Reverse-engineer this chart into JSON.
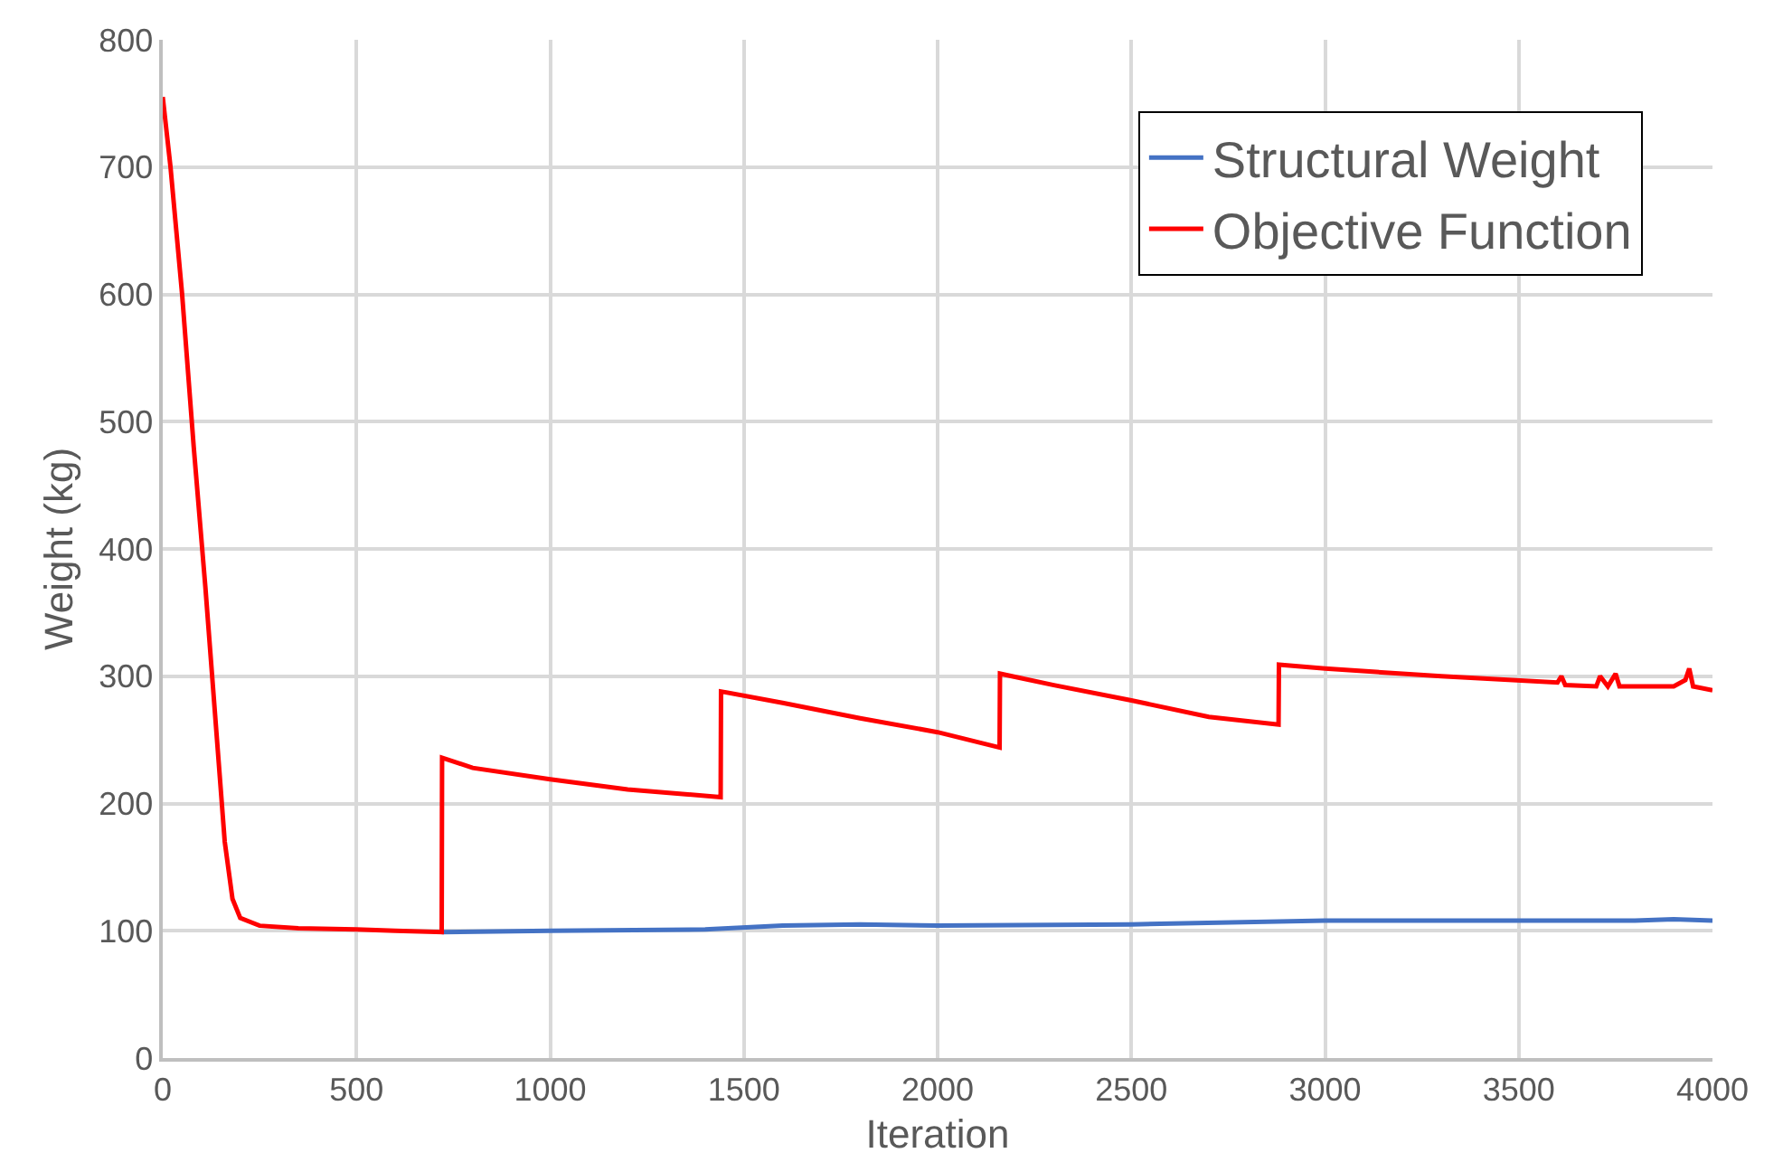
{
  "chart_data": {
    "type": "line",
    "xlabel": "Iteration",
    "ylabel": "Weight (kg)",
    "xlim": [
      0,
      4000
    ],
    "xticks": [
      0,
      500,
      1000,
      1500,
      2000,
      2500,
      3000,
      3500,
      4000
    ],
    "ylim": [
      0,
      800
    ],
    "yticks": [
      0,
      100,
      200,
      300,
      400,
      500,
      600,
      700,
      800
    ],
    "grid": true,
    "legend": "top right",
    "marker": "none",
    "line_style": "solid",
    "series": [
      {
        "name": "Structural Weight",
        "color": "#4472c4",
        "x": [
          720,
          1000,
          1400,
          1600,
          1800,
          2000,
          2500,
          3000,
          3500,
          3800,
          3900,
          4000
        ],
        "values": [
          99,
          100,
          101,
          104,
          105,
          104,
          105,
          108,
          108,
          108,
          109,
          108
        ]
      },
      {
        "name": "Objective Function",
        "color": "#ff0000",
        "x": [
          0,
          20,
          50,
          80,
          110,
          140,
          160,
          180,
          200,
          250,
          350,
          500,
          600,
          720,
          721,
          800,
          1000,
          1200,
          1440,
          1441,
          1600,
          1800,
          2000,
          2160,
          2161,
          2300,
          2500,
          2700,
          2880,
          2881,
          3000,
          3300,
          3600,
          3610,
          3620,
          3700,
          3710,
          3730,
          3750,
          3760,
          3900,
          3930,
          3940,
          3950,
          4000
        ],
        "values": [
          755,
          700,
          600,
          480,
          370,
          250,
          170,
          125,
          110,
          104,
          102,
          101,
          100,
          99,
          236,
          228,
          219,
          211,
          205,
          288,
          279,
          267,
          256,
          244,
          302,
          293,
          281,
          268,
          262,
          309,
          306,
          300,
          295,
          300,
          293,
          292,
          300,
          292,
          302,
          292,
          292,
          297,
          306,
          292,
          289
        ]
      }
    ]
  }
}
